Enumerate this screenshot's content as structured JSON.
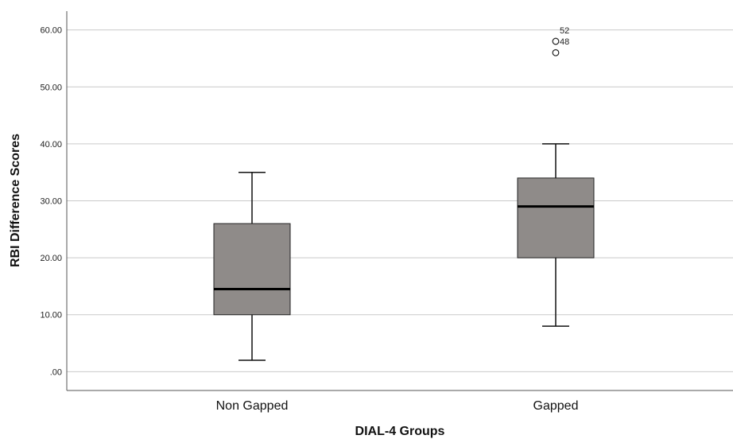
{
  "chart_data": {
    "type": "boxplot",
    "xlabel": "DIAL-4 Groups",
    "ylabel": "RBI Difference Scores",
    "ylim": [
      -3.3,
      63.3
    ],
    "yticks": [
      0,
      10,
      20,
      30,
      40,
      50,
      60
    ],
    "ytick_labels": [
      ".00",
      "10.00",
      "20.00",
      "30.00",
      "40.00",
      "50.00",
      "60.00"
    ],
    "grid": true,
    "box_color": "#8f8b89",
    "categories": [
      "Non Gapped",
      "Gapped"
    ],
    "boxes": [
      {
        "category": "Non Gapped",
        "whisker_low": 2,
        "q1": 10,
        "median": 14.5,
        "q3": 26,
        "whisker_high": 35,
        "outliers": []
      },
      {
        "category": "Gapped",
        "whisker_low": 8,
        "q1": 20,
        "median": 29,
        "q3": 34,
        "whisker_high": 40,
        "outliers": [
          {
            "value": 58,
            "label": "52"
          },
          {
            "value": 56,
            "label": "48"
          }
        ]
      }
    ]
  }
}
